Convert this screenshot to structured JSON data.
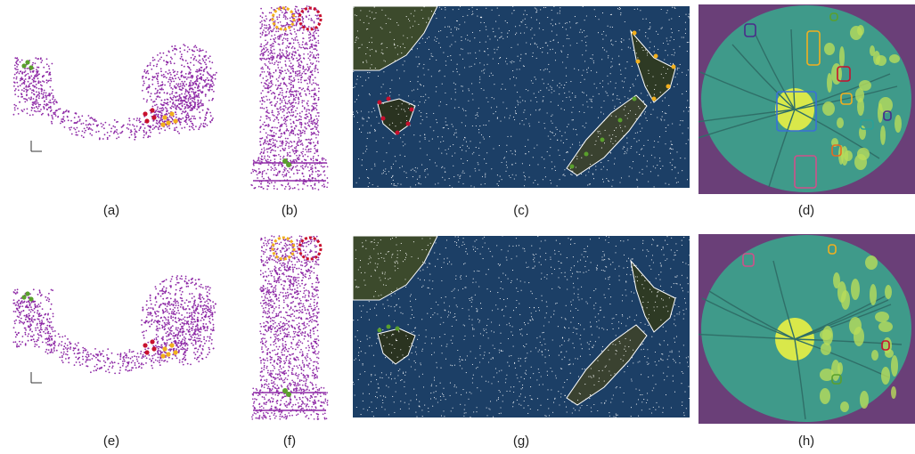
{
  "figure": {
    "captions": [
      "(a)",
      "(b)",
      "(c)",
      "(d)",
      "(e)",
      "(f)",
      "(g)",
      "(h)"
    ],
    "rows": [
      {
        "panels": [
          {
            "caption_index": 0,
            "kind": "pointcloud-curve",
            "point_color": "#8e2aa6",
            "marked_clusters": [
              "#5aa02c",
              "#c8102e",
              "#f2b01e"
            ]
          },
          {
            "caption_index": 1,
            "kind": "pointcloud-column",
            "point_color": "#8e2aa6",
            "marked_clusters": [
              "#f2b01e",
              "#c8102e",
              "#5aa02c"
            ]
          },
          {
            "caption_index": 2,
            "kind": "map",
            "islands_marked": true,
            "marker_colors": [
              "#c8102e",
              "#f2b01e",
              "#5aa02c"
            ]
          },
          {
            "caption_index": 3,
            "kind": "retina",
            "region_outline_colors": [
              "#4b2a8a",
              "#5aa02c",
              "#f2b01e",
              "#c8102e",
              "#3a6fd8",
              "#e86a20",
              "#d04f8a",
              "#2aa198"
            ]
          }
        ]
      },
      {
        "panels": [
          {
            "caption_index": 4,
            "kind": "pointcloud-curve",
            "point_color": "#8e2aa6",
            "marked_clusters": [
              "#5aa02c",
              "#c8102e",
              "#f2b01e"
            ]
          },
          {
            "caption_index": 5,
            "kind": "pointcloud-column",
            "point_color": "#8e2aa6",
            "marked_clusters": [
              "#f2b01e",
              "#c8102e",
              "#5aa02c"
            ]
          },
          {
            "caption_index": 6,
            "kind": "map",
            "islands_marked": false,
            "marker_colors": [
              "#5aa02c",
              "#f2b01e"
            ]
          },
          {
            "caption_index": 7,
            "kind": "retina",
            "region_outline_colors": [
              "#d04f8a",
              "#f2b01e",
              "#c8102e",
              "#5aa02c"
            ]
          }
        ]
      }
    ]
  }
}
